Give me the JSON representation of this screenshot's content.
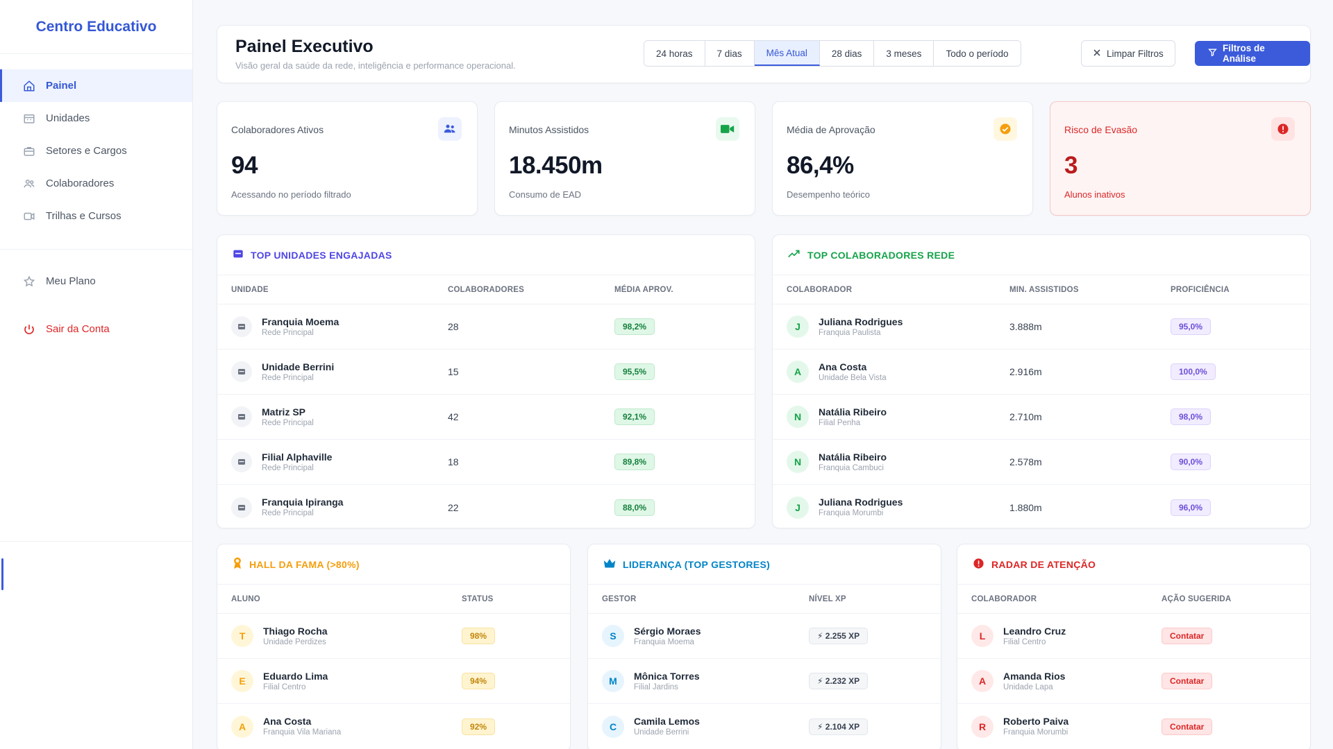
{
  "app": {
    "brand": "Centro Educativo"
  },
  "sidebar": {
    "items": [
      {
        "label": "Painel",
        "icon": "home-icon",
        "active": true
      },
      {
        "label": "Unidades",
        "icon": "building-icon",
        "active": false
      },
      {
        "label": "Setores e Cargos",
        "icon": "briefcase-icon",
        "active": false
      },
      {
        "label": "Colaboradores",
        "icon": "users-icon",
        "active": false
      },
      {
        "label": "Trilhas e Cursos",
        "icon": "video-icon",
        "active": false
      }
    ],
    "plan_label": "Meu Plano",
    "logout_label": "Sair da Conta"
  },
  "header": {
    "title": "Painel Executivo",
    "subtitle": "Visão geral da saúde da rede, inteligência e performance operacional.",
    "periods": [
      "24 horas",
      "7 dias",
      "Mês Atual",
      "28 dias",
      "3 meses",
      "Todo o período"
    ],
    "active_period": "Mês Atual",
    "clear_label": "Limpar Filtros",
    "filter_label": "Filtros de Análise"
  },
  "kpis": [
    {
      "label": "Colaboradores Ativos",
      "value": "94",
      "desc": "Acessando no período filtrado",
      "icon": "users-icon",
      "color": "#3b5bdb"
    },
    {
      "label": "Minutos Assistidos",
      "value": "18.450m",
      "desc": "Consumo de EAD",
      "icon": "video-icon",
      "color": "#16a34a"
    },
    {
      "label": "Média de Aprovação",
      "value": "86,4%",
      "desc": "Desempenho teórico",
      "icon": "check-circle-icon",
      "color": "#f59e0b"
    },
    {
      "label": "Risco de Evasão",
      "value": "3",
      "desc": "Alunos inativos",
      "icon": "alert-circle-icon",
      "color": "#dc2626"
    }
  ],
  "top_units": {
    "title": "TOP UNIDADES ENGAJADAS",
    "color": "#4f46e5",
    "headers": [
      "UNIDADE",
      "COLABORADORES",
      "MÉDIA APROV."
    ],
    "rows": [
      {
        "name": "Franquia Moema",
        "sub": "Rede Principal",
        "count": "28",
        "avg": "98,2%"
      },
      {
        "name": "Unidade Berrini",
        "sub": "Rede Principal",
        "count": "15",
        "avg": "95,5%"
      },
      {
        "name": "Matriz SP",
        "sub": "Rede Principal",
        "count": "42",
        "avg": "92,1%"
      },
      {
        "name": "Filial Alphaville",
        "sub": "Rede Principal",
        "count": "18",
        "avg": "89,8%"
      },
      {
        "name": "Franquia Ipiranga",
        "sub": "Rede Principal",
        "count": "22",
        "avg": "88,0%"
      }
    ]
  },
  "top_collaborators": {
    "title": "TOP COLABORADORES REDE",
    "color": "#16a34a",
    "headers": [
      "COLABORADOR",
      "MIN. ASSISTIDOS",
      "PROFICIÊNCIA"
    ],
    "rows": [
      {
        "initial": "J",
        "name": "Juliana Rodrigues",
        "sub": "Franquia Paulista",
        "minutes": "3.888m",
        "prof": "95,0%"
      },
      {
        "initial": "A",
        "name": "Ana Costa",
        "sub": "Unidade Bela Vista",
        "minutes": "2.916m",
        "prof": "100,0%"
      },
      {
        "initial": "N",
        "name": "Natália Ribeiro",
        "sub": "Filial Penha",
        "minutes": "2.710m",
        "prof": "98,0%"
      },
      {
        "initial": "N",
        "name": "Natália Ribeiro",
        "sub": "Franquia Cambuci",
        "minutes": "2.578m",
        "prof": "90,0%"
      },
      {
        "initial": "J",
        "name": "Juliana Rodrigues",
        "sub": "Franquia Morumbi",
        "minutes": "1.880m",
        "prof": "96,0%"
      }
    ]
  },
  "hall_of_fame": {
    "title": "HALL DA FAMA (>80%)",
    "color": "#f59e0b",
    "headers": [
      "ALUNO",
      "STATUS"
    ],
    "rows": [
      {
        "initial": "T",
        "name": "Thiago Rocha",
        "sub": "Unidade Perdizes",
        "status": "98%"
      },
      {
        "initial": "E",
        "name": "Eduardo Lima",
        "sub": "Filial Centro",
        "status": "94%"
      },
      {
        "initial": "A",
        "name": "Ana Costa",
        "sub": "Franquia Vila Mariana",
        "status": "92%"
      }
    ]
  },
  "leadership": {
    "title": "LIDERANÇA (TOP GESTORES)",
    "color": "#0284c7",
    "headers": [
      "GESTOR",
      "NÍVEL XP"
    ],
    "rows": [
      {
        "initial": "S",
        "name": "Sérgio Moraes",
        "sub": "Franquia Moema",
        "xp": "2.255 XP"
      },
      {
        "initial": "M",
        "name": "Mônica Torres",
        "sub": "Filial Jardins",
        "xp": "2.232 XP"
      },
      {
        "initial": "C",
        "name": "Camila Lemos",
        "sub": "Unidade Berrini",
        "xp": "2.104 XP"
      }
    ]
  },
  "attention": {
    "title": "RADAR DE ATENÇÃO",
    "color": "#dc2626",
    "headers": [
      "COLABORADOR",
      "AÇÃO SUGERIDA"
    ],
    "rows": [
      {
        "initial": "L",
        "name": "Leandro Cruz",
        "sub": "Filial Centro",
        "action": "Contatar"
      },
      {
        "initial": "A",
        "name": "Amanda Rios",
        "sub": "Unidade Lapa",
        "action": "Contatar"
      },
      {
        "initial": "R",
        "name": "Roberto Paiva",
        "sub": "Franquia Morumbi",
        "action": "Contatar"
      }
    ]
  }
}
